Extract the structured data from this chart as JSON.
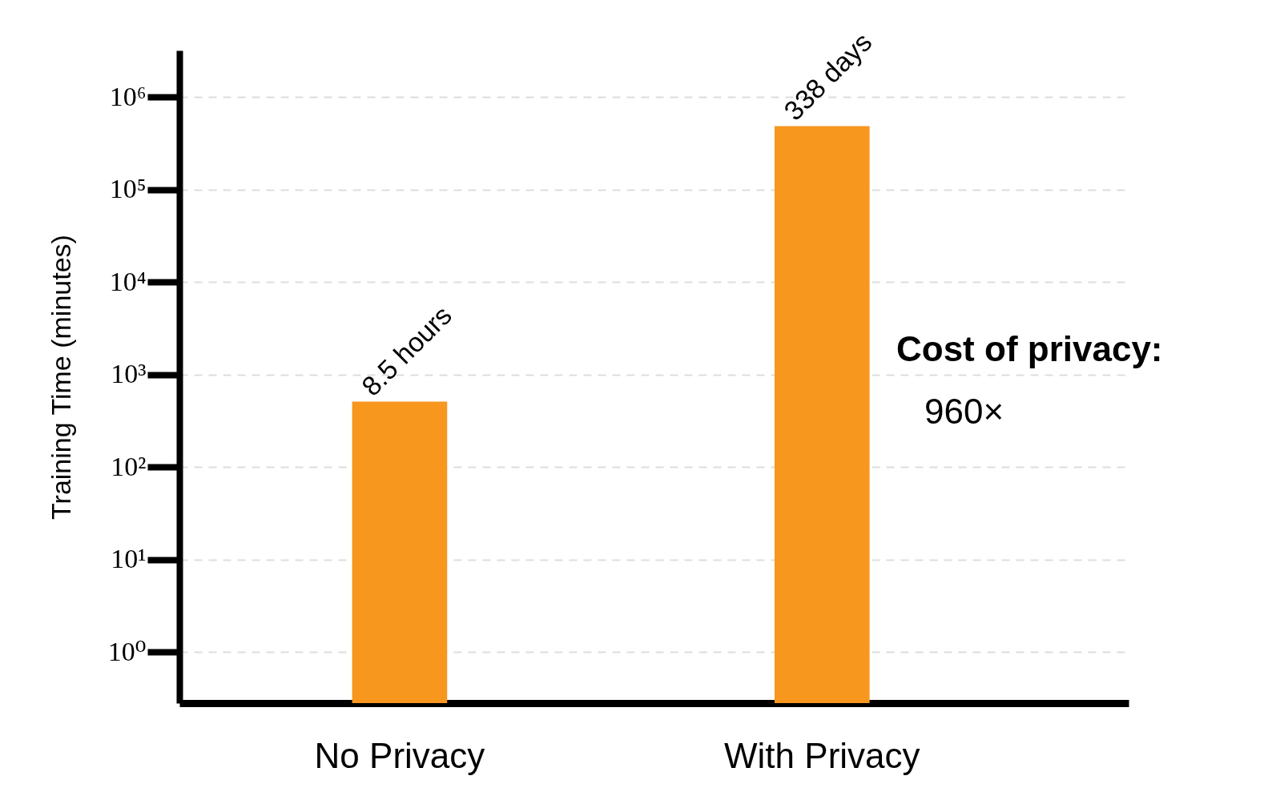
{
  "chart_data": {
    "type": "bar",
    "ylabel": "Training Time (minutes)",
    "categories": [
      "No Privacy",
      "With Privacy"
    ],
    "values": [
      510,
      486720
    ],
    "color": "#f7971e",
    "log": true,
    "ylim": [
      0.28,
      3200000
    ],
    "yticks": [
      {
        "value": 1,
        "label": "10⁰"
      },
      {
        "value": 10,
        "label": "10¹"
      },
      {
        "value": 100,
        "label": "10²"
      },
      {
        "value": 1000,
        "label": "10³"
      },
      {
        "value": 10000,
        "label": "10⁴"
      },
      {
        "value": 100000,
        "label": "10⁵"
      },
      {
        "value": 1000000,
        "label": "10⁶"
      }
    ],
    "grid": "y",
    "annotations": [
      {
        "text": "8.5 hours",
        "x": "No Privacy",
        "y": 510
      },
      {
        "text": "338 days",
        "x": "With Privacy",
        "y": 486720
      },
      "Cost of privacy:",
      "960×"
    ]
  }
}
